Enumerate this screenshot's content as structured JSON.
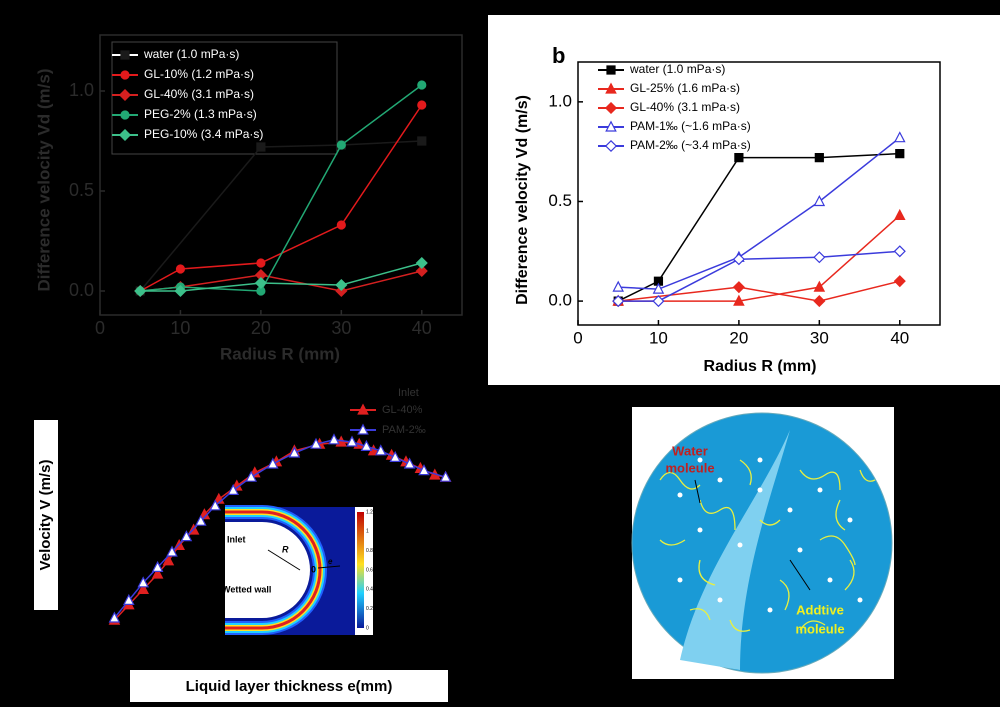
{
  "chart_data": [
    {
      "type": "line",
      "ylabel": "Difference velocity Vd (m/s)",
      "xlabel": "Radius R (mm)",
      "xlim": [
        0,
        45
      ],
      "ylim": [
        -0.12,
        1.28
      ],
      "xticks": [
        0,
        10,
        20,
        30,
        40
      ],
      "yticks": [
        {
          "value": 0,
          "label": "0.0"
        },
        {
          "value": 0.5,
          "label": "0.5"
        },
        {
          "value": 1,
          "label": "1.0"
        }
      ],
      "x": [
        5,
        10,
        20,
        30,
        40
      ],
      "series": [
        {
          "name": "water (1.0 mPa·s)",
          "color": "#1a1a1a",
          "marker": "square",
          "values": [
            0,
            null,
            0.72,
            0.73,
            0.75
          ]
        },
        {
          "name": "GL-10% (1.2 mPa·s)",
          "color": "#e31a1c",
          "marker": "circle",
          "values": [
            0,
            0.11,
            0.14,
            0.33,
            0.93
          ]
        },
        {
          "name": "GL-40% (3.1 mPa·s)",
          "color": "#d42020",
          "marker": "diamond",
          "values": [
            0,
            0.02,
            0.08,
            0.0,
            0.1
          ]
        },
        {
          "name": "PEG-2% (1.3 mPa·s)",
          "color": "#22a874",
          "marker": "halfcircle",
          "values": [
            0,
            0.02,
            0.0,
            0.73,
            1.03
          ]
        },
        {
          "name": "PEG-10% (3.4 mPa·s)",
          "color": "#3cc08a",
          "marker": "diamond",
          "values": [
            0,
            0.0,
            0.04,
            0.03,
            0.14
          ]
        }
      ]
    },
    {
      "type": "line",
      "label": "b",
      "ylabel": "Difference velocity Vd (m/s)",
      "xlabel": "Radius R (mm)",
      "xlim": [
        0,
        45
      ],
      "ylim": [
        -0.12,
        1.2
      ],
      "xticks": [
        0,
        10,
        20,
        30,
        40
      ],
      "yticks": [
        {
          "value": 0,
          "label": "0.0"
        },
        {
          "value": 0.5,
          "label": "0.5"
        },
        {
          "value": 1,
          "label": "1.0"
        }
      ],
      "x": [
        5,
        10,
        20,
        30,
        40
      ],
      "series": [
        {
          "name": "water (1.0 mPa·s)",
          "color": "#000000",
          "marker": "square",
          "values": [
            0,
            0.1,
            0.72,
            0.72,
            0.74
          ]
        },
        {
          "name": "GL-25% (1.6 mPa·s)",
          "color": "#e8281e",
          "marker": "triangle",
          "values": [
            0,
            null,
            0.0,
            0.07,
            0.43
          ]
        },
        {
          "name": "GL-40% (3.1 mPa·s)",
          "color": "#e8281e",
          "marker": "diamond",
          "values": [
            0,
            null,
            0.07,
            0.0,
            0.1
          ]
        },
        {
          "name": "PAM-1‰ (~1.6 mPa·s)",
          "color": "#3b3bdc",
          "marker": "open-triangle",
          "values": [
            0.07,
            0.06,
            0.22,
            0.5,
            0.82
          ]
        },
        {
          "name": "PAM-2‰ (~3.4 mPa·s)",
          "color": "#3b3bdc",
          "marker": "open-diamond",
          "values": [
            0,
            0,
            0.21,
            0.22,
            0.25
          ]
        }
      ]
    },
    {
      "type": "scatter",
      "ylabel": "Velocity V (m/s)",
      "xlabel": "Liquid layer thickness e(mm)",
      "legend_title": "Inlet",
      "xlim": [
        0,
        1
      ],
      "ylim": [
        0,
        1
      ],
      "series": [
        {
          "name": "GL-40%",
          "color": "#e02020",
          "marker": "triangle",
          "x": [
            0.04,
            0.08,
            0.12,
            0.16,
            0.19,
            0.22,
            0.26,
            0.29,
            0.33,
            0.38,
            0.43,
            0.49,
            0.54,
            0.61,
            0.67,
            0.72,
            0.76,
            0.81,
            0.85,
            0.89,
            0.93,
            0.96
          ],
          "values": [
            0.09,
            0.16,
            0.23,
            0.3,
            0.36,
            0.43,
            0.5,
            0.57,
            0.64,
            0.7,
            0.76,
            0.81,
            0.86,
            0.89,
            0.9,
            0.89,
            0.86,
            0.84,
            0.81,
            0.78,
            0.75,
            0.74
          ]
        },
        {
          "name": "PAM-2‰",
          "color": "#3b3bdc",
          "marker": "open-triangle",
          "x": [
            0.04,
            0.08,
            0.12,
            0.16,
            0.2,
            0.24,
            0.28,
            0.32,
            0.37,
            0.42,
            0.48,
            0.54,
            0.6,
            0.65,
            0.7,
            0.74,
            0.78,
            0.82,
            0.86,
            0.9,
            0.96
          ],
          "values": [
            0.1,
            0.18,
            0.26,
            0.33,
            0.4,
            0.47,
            0.54,
            0.61,
            0.68,
            0.74,
            0.8,
            0.85,
            0.89,
            0.91,
            0.9,
            0.88,
            0.86,
            0.83,
            0.8,
            0.77,
            0.74
          ]
        }
      ]
    }
  ],
  "inset": {
    "inlet": "Inlet",
    "radius": "R",
    "origin": "0",
    "thickness": "e",
    "wall": "Wetted wall",
    "colorbar_ticks": [
      1.2,
      1,
      0.8,
      0.6,
      0.4,
      0.2,
      0
    ]
  },
  "diagram": {
    "water": [
      "Water",
      "moleule"
    ],
    "additive": [
      "Addtive",
      "moleule"
    ]
  }
}
